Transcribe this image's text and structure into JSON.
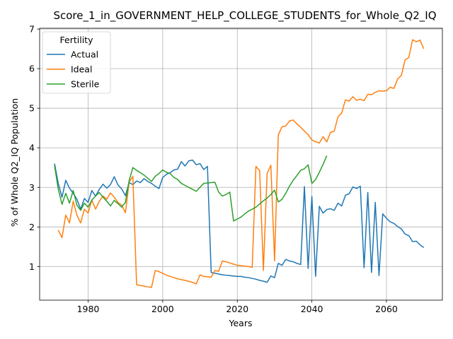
{
  "chart_data": {
    "type": "line",
    "title": "Score_1_in_GOVERNMENT_HELP_COLLEGE_STUDENTS_for_Whole_Q2_IQ",
    "xlabel": "Years",
    "ylabel": "% of Whole Q2_IQ Population",
    "xlim": [
      1967,
      2075
    ],
    "ylim": [
      0.15,
      7.02
    ],
    "xticks": [
      1980,
      2000,
      2020,
      2040,
      2060
    ],
    "yticks": [
      1,
      2,
      3,
      4,
      5,
      6,
      7
    ],
    "grid": true,
    "legend": {
      "title": "Fertility",
      "placement": "top-left"
    },
    "series": [
      {
        "name": "Actual",
        "color": "#1f77b4",
        "points": [
          [
            1971,
            3.6
          ],
          [
            1972,
            3.1
          ],
          [
            1973,
            2.75
          ],
          [
            1974,
            3.18
          ],
          [
            1975,
            2.98
          ],
          [
            1976,
            2.85
          ],
          [
            1977,
            2.7
          ],
          [
            1978,
            2.45
          ],
          [
            1979,
            2.72
          ],
          [
            1980,
            2.62
          ],
          [
            1981,
            2.92
          ],
          [
            1982,
            2.78
          ],
          [
            1983,
            2.95
          ],
          [
            1984,
            3.08
          ],
          [
            1985,
            2.98
          ],
          [
            1986,
            3.07
          ],
          [
            1987,
            3.27
          ],
          [
            1988,
            3.06
          ],
          [
            1989,
            2.96
          ],
          [
            1990,
            2.79
          ],
          [
            1991,
            3.12
          ],
          [
            1992,
            3.07
          ],
          [
            1993,
            3.16
          ],
          [
            1994,
            3.12
          ],
          [
            1995,
            3.22
          ],
          [
            1996,
            3.15
          ],
          [
            1997,
            3.1
          ],
          [
            1998,
            3.03
          ],
          [
            1999,
            2.97
          ],
          [
            2000,
            3.25
          ],
          [
            2001,
            3.33
          ],
          [
            2002,
            3.37
          ],
          [
            2003,
            3.44
          ],
          [
            2004,
            3.46
          ],
          [
            2005,
            3.65
          ],
          [
            2006,
            3.54
          ],
          [
            2007,
            3.67
          ],
          [
            2008,
            3.69
          ],
          [
            2009,
            3.57
          ],
          [
            2010,
            3.6
          ],
          [
            2011,
            3.45
          ],
          [
            2012,
            3.53
          ],
          [
            2013,
            0.85
          ],
          [
            2014,
            0.83
          ],
          [
            2015,
            0.81
          ],
          [
            2016,
            0.79
          ],
          [
            2017,
            0.78
          ],
          [
            2018,
            0.77
          ],
          [
            2019,
            0.76
          ],
          [
            2020,
            0.75
          ],
          [
            2021,
            0.75
          ],
          [
            2022,
            0.73
          ],
          [
            2023,
            0.72
          ],
          [
            2024,
            0.7
          ],
          [
            2025,
            0.68
          ],
          [
            2026,
            0.65
          ],
          [
            2027,
            0.63
          ],
          [
            2028,
            0.6
          ],
          [
            2029,
            0.76
          ],
          [
            2030,
            0.72
          ],
          [
            2031,
            1.08
          ],
          [
            2032,
            1.03
          ],
          [
            2033,
            1.18
          ],
          [
            2034,
            1.14
          ],
          [
            2035,
            1.12
          ],
          [
            2036,
            1.08
          ],
          [
            2037,
            1.05
          ],
          [
            2038,
            3.02
          ],
          [
            2039,
            0.95
          ],
          [
            2040,
            2.77
          ],
          [
            2041,
            0.75
          ],
          [
            2042,
            2.52
          ],
          [
            2043,
            2.35
          ],
          [
            2044,
            2.44
          ],
          [
            2045,
            2.46
          ],
          [
            2046,
            2.42
          ],
          [
            2047,
            2.6
          ],
          [
            2048,
            2.53
          ],
          [
            2049,
            2.8
          ],
          [
            2050,
            2.84
          ],
          [
            2051,
            3.01
          ],
          [
            2052,
            2.97
          ],
          [
            2053,
            3.03
          ],
          [
            2054,
            0.97
          ],
          [
            2055,
            2.87
          ],
          [
            2056,
            0.85
          ],
          [
            2057,
            2.62
          ],
          [
            2058,
            0.77
          ],
          [
            2059,
            2.33
          ],
          [
            2060,
            2.22
          ],
          [
            2061,
            2.13
          ],
          [
            2062,
            2.09
          ],
          [
            2063,
            2.01
          ],
          [
            2064,
            1.95
          ],
          [
            2065,
            1.82
          ],
          [
            2066,
            1.78
          ],
          [
            2067,
            1.63
          ],
          [
            2068,
            1.64
          ],
          [
            2069,
            1.55
          ],
          [
            2070,
            1.48
          ]
        ]
      },
      {
        "name": "Ideal",
        "color": "#ff7f0e",
        "points": [
          [
            1972,
            1.92
          ],
          [
            1973,
            1.73
          ],
          [
            1974,
            2.3
          ],
          [
            1975,
            2.1
          ],
          [
            1976,
            2.65
          ],
          [
            1977,
            2.3
          ],
          [
            1978,
            2.1
          ],
          [
            1979,
            2.45
          ],
          [
            1980,
            2.35
          ],
          [
            1981,
            2.68
          ],
          [
            1982,
            2.45
          ],
          [
            1983,
            2.65
          ],
          [
            1984,
            2.78
          ],
          [
            1985,
            2.7
          ],
          [
            1986,
            2.86
          ],
          [
            1987,
            2.75
          ],
          [
            1988,
            2.62
          ],
          [
            1989,
            2.55
          ],
          [
            1990,
            2.36
          ],
          [
            1991,
            3.13
          ],
          [
            1992,
            3.28
          ],
          [
            1993,
            0.54
          ],
          [
            1997,
            0.47
          ],
          [
            1998,
            0.9
          ],
          [
            1999,
            0.87
          ],
          [
            2000,
            0.83
          ],
          [
            2001,
            0.78
          ],
          [
            2003,
            0.72
          ],
          [
            2004,
            0.69
          ],
          [
            2006,
            0.65
          ],
          [
            2008,
            0.6
          ],
          [
            2009,
            0.56
          ],
          [
            2010,
            0.79
          ],
          [
            2011,
            0.75
          ],
          [
            2013,
            0.73
          ],
          [
            2014,
            0.9
          ],
          [
            2015,
            0.88
          ],
          [
            2016,
            1.14
          ],
          [
            2017,
            1.12
          ],
          [
            2018,
            1.09
          ],
          [
            2019,
            1.06
          ],
          [
            2020,
            1.03
          ],
          [
            2021,
            1.02
          ],
          [
            2023,
            1.0
          ],
          [
            2024,
            0.98
          ],
          [
            2025,
            3.53
          ],
          [
            2026,
            3.42
          ],
          [
            2027,
            0.9
          ],
          [
            2028,
            3.35
          ],
          [
            2029,
            3.56
          ],
          [
            2030,
            1.14
          ],
          [
            2031,
            4.33
          ],
          [
            2032,
            4.53
          ],
          [
            2033,
            4.55
          ],
          [
            2034,
            4.68
          ],
          [
            2035,
            4.7
          ],
          [
            2036,
            4.6
          ],
          [
            2037,
            4.52
          ],
          [
            2038,
            4.42
          ],
          [
            2039,
            4.33
          ],
          [
            2040,
            4.2
          ],
          [
            2041,
            4.15
          ],
          [
            2042,
            4.12
          ],
          [
            2043,
            4.28
          ],
          [
            2044,
            4.15
          ],
          [
            2045,
            4.39
          ],
          [
            2046,
            4.42
          ],
          [
            2047,
            4.78
          ],
          [
            2048,
            4.88
          ],
          [
            2049,
            5.21
          ],
          [
            2050,
            5.18
          ],
          [
            2051,
            5.29
          ],
          [
            2052,
            5.2
          ],
          [
            2053,
            5.23
          ],
          [
            2054,
            5.19
          ],
          [
            2055,
            5.35
          ],
          [
            2056,
            5.34
          ],
          [
            2057,
            5.4
          ],
          [
            2058,
            5.44
          ],
          [
            2059,
            5.43
          ],
          [
            2060,
            5.44
          ],
          [
            2061,
            5.53
          ],
          [
            2062,
            5.5
          ],
          [
            2063,
            5.74
          ],
          [
            2064,
            5.83
          ],
          [
            2065,
            6.22
          ],
          [
            2066,
            6.28
          ],
          [
            2067,
            6.73
          ],
          [
            2068,
            6.68
          ],
          [
            2069,
            6.72
          ],
          [
            2070,
            6.5
          ]
        ]
      },
      {
        "name": "Sterile",
        "color": "#2ca02c",
        "points": [
          [
            1971,
            3.55
          ],
          [
            1972,
            2.95
          ],
          [
            1973,
            2.57
          ],
          [
            1974,
            2.85
          ],
          [
            1975,
            2.6
          ],
          [
            1976,
            2.92
          ],
          [
            1977,
            2.55
          ],
          [
            1978,
            2.42
          ],
          [
            1979,
            2.6
          ],
          [
            1980,
            2.5
          ],
          [
            1981,
            2.68
          ],
          [
            1982,
            2.78
          ],
          [
            1983,
            2.87
          ],
          [
            1984,
            2.75
          ],
          [
            1985,
            2.65
          ],
          [
            1986,
            2.53
          ],
          [
            1987,
            2.67
          ],
          [
            1988,
            2.59
          ],
          [
            1989,
            2.5
          ],
          [
            1990,
            2.62
          ],
          [
            1991,
            3.17
          ],
          [
            1992,
            3.5
          ],
          [
            1993,
            3.43
          ],
          [
            1994,
            3.37
          ],
          [
            1995,
            3.31
          ],
          [
            1996,
            3.23
          ],
          [
            1997,
            3.15
          ],
          [
            1998,
            3.28
          ],
          [
            1999,
            3.35
          ],
          [
            2000,
            3.44
          ],
          [
            2001,
            3.38
          ],
          [
            2002,
            3.35
          ],
          [
            2003,
            3.25
          ],
          [
            2004,
            3.2
          ],
          [
            2005,
            3.1
          ],
          [
            2006,
            3.05
          ],
          [
            2007,
            3.0
          ],
          [
            2008,
            2.95
          ],
          [
            2009,
            2.9
          ],
          [
            2010,
            3.0
          ],
          [
            2011,
            3.1
          ],
          [
            2014,
            3.13
          ],
          [
            2015,
            2.88
          ],
          [
            2016,
            2.78
          ],
          [
            2017,
            2.82
          ],
          [
            2018,
            2.88
          ],
          [
            2019,
            2.15
          ],
          [
            2020,
            2.2
          ],
          [
            2021,
            2.25
          ],
          [
            2022,
            2.33
          ],
          [
            2023,
            2.4
          ],
          [
            2024,
            2.45
          ],
          [
            2025,
            2.5
          ],
          [
            2026,
            2.58
          ],
          [
            2027,
            2.66
          ],
          [
            2028,
            2.73
          ],
          [
            2029,
            2.82
          ],
          [
            2030,
            2.93
          ],
          [
            2031,
            2.63
          ],
          [
            2032,
            2.7
          ],
          [
            2033,
            2.85
          ],
          [
            2034,
            3.03
          ],
          [
            2035,
            3.18
          ],
          [
            2036,
            3.3
          ],
          [
            2037,
            3.43
          ],
          [
            2038,
            3.47
          ],
          [
            2039,
            3.57
          ],
          [
            2040,
            3.1
          ],
          [
            2041,
            3.2
          ],
          [
            2042,
            3.38
          ],
          [
            2043,
            3.58
          ],
          [
            2044,
            3.8
          ]
        ]
      }
    ]
  }
}
